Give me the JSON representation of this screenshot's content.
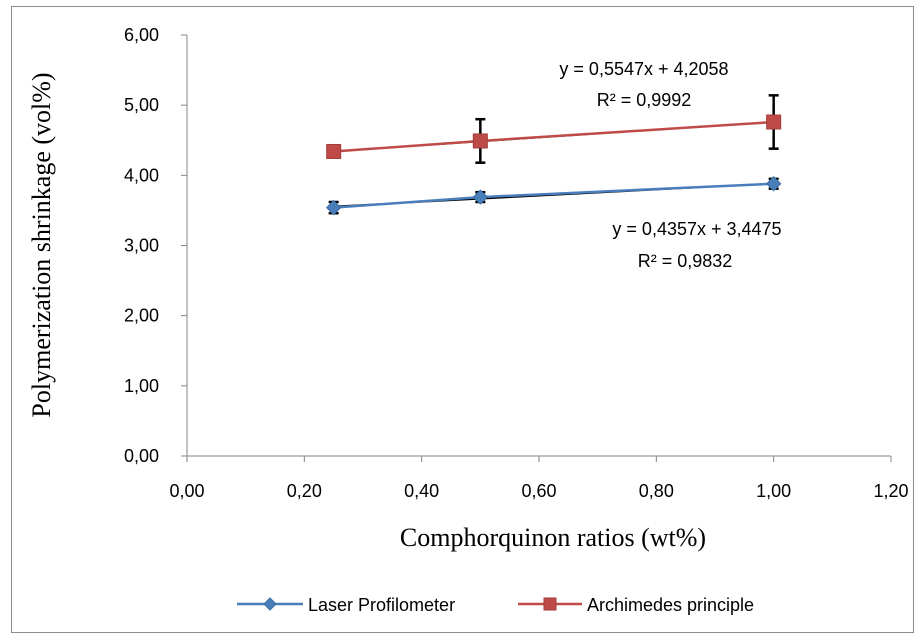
{
  "chart_data": {
    "type": "scatter",
    "title": "",
    "xlabel": "Comphorquinon ratios (wt%)",
    "ylabel": "Polymerization shrinkage (vol%)",
    "xlim": [
      0,
      1.2
    ],
    "ylim": [
      0,
      6
    ],
    "x_ticks": [
      "0,00",
      "0,20",
      "0,40",
      "0,60",
      "0,80",
      "1,00",
      "1,20"
    ],
    "y_ticks": [
      "0,00",
      "1,00",
      "2,00",
      "3,00",
      "4,00",
      "5,00",
      "6,00"
    ],
    "grid": false,
    "legend_position": "bottom",
    "series": [
      {
        "name": "Laser Profilometer",
        "color": "#4a7ebb",
        "marker": "diamond",
        "x": [
          0.25,
          0.5,
          1.0
        ],
        "y": [
          3.54,
          3.69,
          3.88
        ],
        "error": [
          0.08,
          0.07,
          0.07
        ],
        "trendline": {
          "slope": 0.4357,
          "intercept": 3.4475,
          "equation": "y = 0,4357x + 3,4475",
          "r2": "R² = 0,9832"
        }
      },
      {
        "name": "Archimedes principle",
        "color": "#be4b48",
        "marker": "square",
        "x": [
          0.25,
          0.5,
          1.0
        ],
        "y": [
          4.34,
          4.49,
          4.76
        ],
        "error": [
          0.0,
          0.31,
          0.38
        ],
        "trendline": {
          "slope": 0.5547,
          "intercept": 4.2058,
          "equation": "y = 0,5547x + 4,2058",
          "r2": "R² = 0,9992"
        }
      }
    ]
  }
}
